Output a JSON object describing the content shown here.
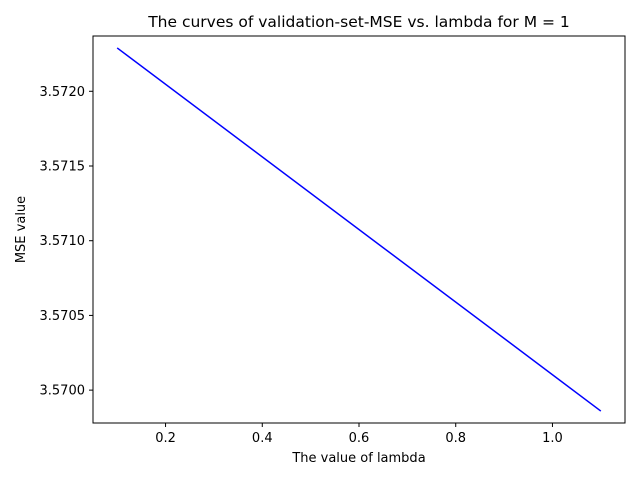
{
  "chart_data": {
    "type": "line",
    "title": "The curves of validation-set-MSE vs. lambda for M = 1",
    "xlabel": "The value of lambda",
    "ylabel": "MSE value",
    "xlim": [
      0.05,
      1.15
    ],
    "ylim": [
      3.56978,
      3.57237
    ],
    "xticks": [
      0.2,
      0.4,
      0.6,
      0.8,
      1.0
    ],
    "xtick_labels": [
      "0.2",
      "0.4",
      "0.6",
      "0.8",
      "1.0"
    ],
    "yticks": [
      3.57,
      3.5705,
      3.571,
      3.5715,
      3.572
    ],
    "ytick_labels": [
      "3.5700",
      "3.5705",
      "3.5710",
      "3.5715",
      "3.5720"
    ],
    "grid": false,
    "line_color": "#0000ff",
    "series": [
      {
        "x": [
          0.1,
          1.1
        ],
        "y": [
          3.57229,
          3.56986
        ]
      }
    ]
  }
}
